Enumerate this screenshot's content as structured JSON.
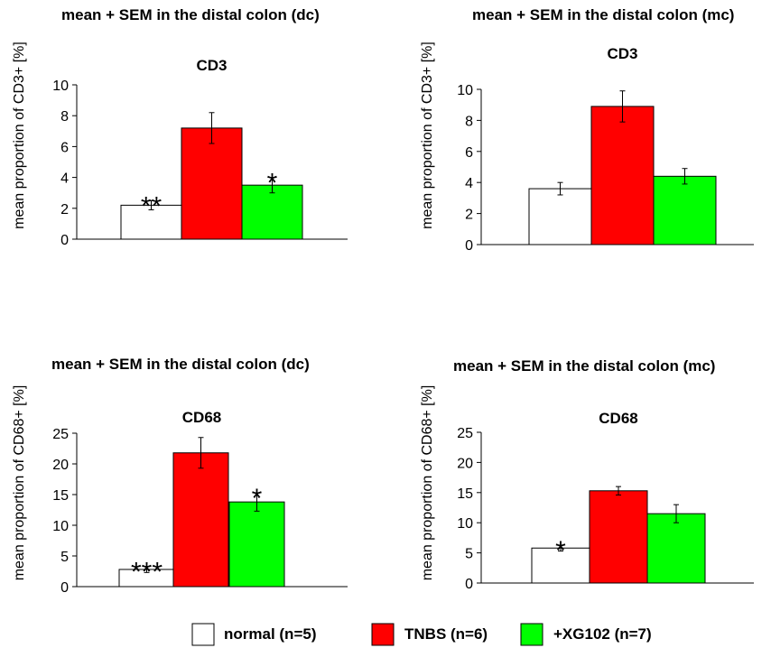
{
  "legend": {
    "items": [
      {
        "label": "normal (n=5)",
        "color": "#ffffff"
      },
      {
        "label": "TNBS (n=6)",
        "color": "#ff0000"
      },
      {
        "label": "+XG102 (n=7)",
        "color": "#00ff00"
      }
    ]
  },
  "chart_data": [
    {
      "type": "bar",
      "title": "mean + SEM in the distal colon (dc)",
      "subtitle": "CD3",
      "ylabel": "mean proportion of CD3+ [%]",
      "ylim": [
        0,
        10
      ],
      "yticks": [
        0,
        2,
        4,
        6,
        8,
        10
      ],
      "categories": [
        "normal (n=5)",
        "TNBS (n=6)",
        "+XG102 (n=7)"
      ],
      "values": [
        2.2,
        7.2,
        3.5
      ],
      "errors": [
        0.3,
        1.0,
        0.5
      ],
      "colors": [
        "#ffffff",
        "#ff0000",
        "#00ff00"
      ],
      "annotations": [
        "**",
        "",
        "*"
      ]
    },
    {
      "type": "bar",
      "title": "mean + SEM in the distal colon (mc)",
      "subtitle": "CD3",
      "ylabel": "mean proportion of CD3+ [%]",
      "ylim": [
        0,
        10
      ],
      "yticks": [
        0,
        2,
        4,
        6,
        8,
        10
      ],
      "categories": [
        "normal (n=5)",
        "TNBS (n=6)",
        "+XG102 (n=7)"
      ],
      "values": [
        3.6,
        8.9,
        4.4
      ],
      "errors": [
        0.4,
        1.0,
        0.5
      ],
      "colors": [
        "#ffffff",
        "#ff0000",
        "#00ff00"
      ],
      "annotations": [
        "",
        "",
        ""
      ]
    },
    {
      "type": "bar",
      "title": "mean + SEM in the distal colon (dc)",
      "subtitle": "CD68",
      "ylabel": "mean proportion of CD68+ [%]",
      "ylim": [
        0,
        25
      ],
      "yticks": [
        0,
        5,
        10,
        15,
        20,
        25
      ],
      "categories": [
        "normal (n=5)",
        "TNBS (n=6)",
        "+XG102 (n=7)"
      ],
      "values": [
        2.8,
        21.8,
        13.8
      ],
      "errors": [
        0.5,
        2.5,
        1.5
      ],
      "colors": [
        "#ffffff",
        "#ff0000",
        "#00ff00"
      ],
      "annotations": [
        "***",
        "",
        "*"
      ]
    },
    {
      "type": "bar",
      "title": "mean + SEM in the distal colon (mc)",
      "subtitle": "CD68",
      "ylabel": "mean proportion of CD68+ [%]",
      "ylim": [
        0,
        25
      ],
      "yticks": [
        0,
        5,
        10,
        15,
        20,
        25
      ],
      "categories": [
        "normal (n=5)",
        "TNBS (n=6)",
        "+XG102 (n=7)"
      ],
      "values": [
        5.8,
        15.3,
        11.5
      ],
      "errors": [
        0.5,
        0.7,
        1.5
      ],
      "colors": [
        "#ffffff",
        "#ff0000",
        "#00ff00"
      ],
      "annotations": [
        "*",
        "",
        ""
      ]
    }
  ]
}
